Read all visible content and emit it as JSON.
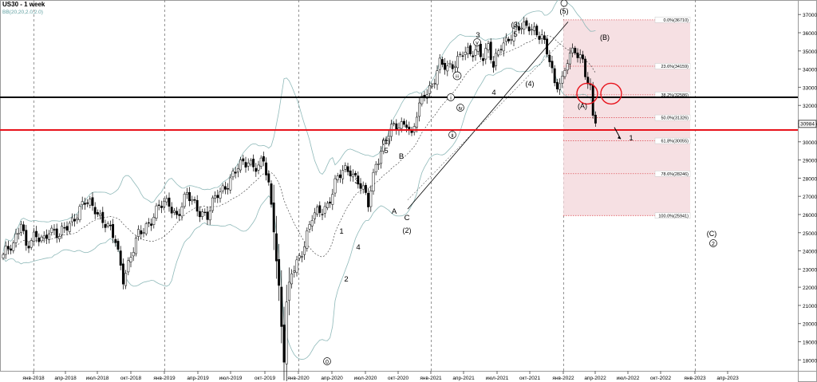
{
  "header": {
    "title": "US30 - 1 week",
    "indicator": "BB(20,20,2.0,2.0)"
  },
  "chart_data": {
    "type": "candlestick",
    "ylim": [
      17400,
      37800
    ],
    "yticks": [
      18000,
      19000,
      20000,
      21000,
      22000,
      23000,
      24000,
      25000,
      26000,
      27000,
      28000,
      29000,
      30000,
      31000,
      32000,
      33000,
      34000,
      35000,
      36000,
      37000
    ],
    "xticks": [
      "янв-2018",
      "апр-2018",
      "июл-2018",
      "окт-2018",
      "янв-2019",
      "апр-2019",
      "июл-2019",
      "окт-2019",
      "янв-2020",
      "апр-2020",
      "июл-2020",
      "окт-2020",
      "янв-2021",
      "апр-2021",
      "июл-2021",
      "окт-2021",
      "янв-2022",
      "апр-2022",
      "июл-2022",
      "окт-2022",
      "янв-2023",
      "апр-2023"
    ],
    "dashed_verticals": [
      "янв-2018",
      "янв-2019",
      "янв-2020",
      "янв-2021",
      "янв-2022",
      "янв-2023"
    ],
    "last_price": "30984",
    "colors": {
      "up": "#ffffff",
      "down": "#000000",
      "bands": "#8fb9b9",
      "support": "#000000",
      "resistance": "#e8121b",
      "fib_zone": "#f3d6da",
      "fib_line": "#e05a60",
      "circle": "#e8121b"
    },
    "horizontal_lines": [
      {
        "value": 32450,
        "color": "#000000",
        "role": "support"
      },
      {
        "value": 30650,
        "color": "#e8121b",
        "role": "resistance"
      }
    ],
    "fibonacci": {
      "x_start": "янв-2022",
      "levels": [
        {
          "value": 36710,
          "label": "0.0%(36710)"
        },
        {
          "value": 34159,
          "label": "23.6%(34159)"
        },
        {
          "value": 32586,
          "label": "38.2%(32586)"
        },
        {
          "value": 31326,
          "label": "50.0%(31326)"
        },
        {
          "value": 30055,
          "label": "61.8%(30055)"
        },
        {
          "value": 28246,
          "label": "78.6%(28246)"
        },
        {
          "value": 25941,
          "label": "100.0%(25941)"
        }
      ]
    },
    "wave_labels": [
      "0",
      "1",
      "2",
      "3",
      "4",
      "5",
      "(1)",
      "A",
      "B",
      "C",
      "(2)",
      "i",
      "ii",
      "iii",
      "iv",
      "v",
      "3",
      "4",
      "(3)",
      "5",
      "(4)",
      "(5)",
      "(A)",
      "(B)",
      "1",
      "(C)",
      "2"
    ]
  }
}
